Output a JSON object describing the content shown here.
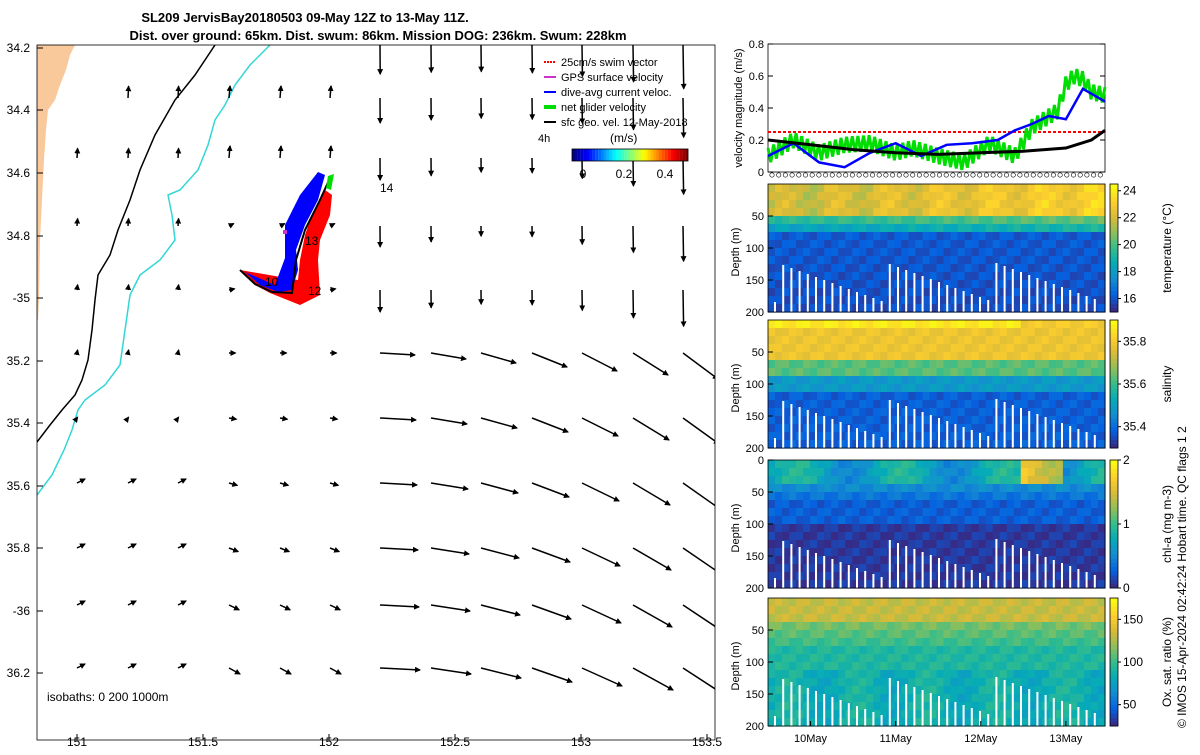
{
  "header": {
    "title_line1": "SL209 JervisBay20180503 09-May 12Z to 13-May 11Z.",
    "title_line2": "Dist. over ground: 65km. Dist. swum: 86km. Mission DOG: 236km. Swum: 228km"
  },
  "colors": {
    "land": "#f9c99b",
    "isobath_200": "#000000",
    "isobath_1000": "#33d6d6",
    "swim_vector": "#ff0000",
    "gps_velocity": "#cc33cc",
    "dive_avg_current": "#0000ff",
    "net_glider_velocity": "#00dd00",
    "sfc_geo_vel": "#000000"
  },
  "map": {
    "lon_ticks": [
      "151",
      "151.5",
      "152",
      "152.5",
      "153",
      "153.5"
    ],
    "lat_ticks": [
      "34.2",
      "34.4",
      "34.6",
      "34.8",
      "-35",
      "35.2",
      "35.4",
      "35.6",
      "35.8",
      "-36",
      "36.2"
    ],
    "legend": [
      {
        "key": "swim",
        "label": "25cm/s swim vector"
      },
      {
        "key": "gps",
        "label": "GPS surface velocity"
      },
      {
        "key": "dac",
        "label": "dive-avg current veloc."
      },
      {
        "key": "net",
        "label": "net glider velocity"
      },
      {
        "key": "sfc",
        "label": "sfc geo. vel. 12-May-2018"
      }
    ],
    "legend_prefix": "4h",
    "colorbar_label": "(m/s)",
    "colorbar_ticks": [
      "0",
      "0.2",
      "0.4"
    ],
    "isobath_note": "isobaths: 0   200  1000m",
    "day_labels": [
      "10",
      "12",
      "13",
      "14"
    ]
  },
  "chart_data": [
    {
      "type": "line",
      "ylabel": "velocity magnitude (m/s)",
      "ylim": [
        0,
        0.8
      ],
      "y_ticks": [
        "0",
        "0.2",
        "0.4",
        "0.6",
        "0.8"
      ],
      "x_range_days": [
        9.5,
        13.46
      ],
      "series": [
        {
          "key": "swim",
          "values_x": [
            9.5,
            13.46
          ],
          "values_y": [
            0.25,
            0.25
          ]
        },
        {
          "key": "net",
          "values_x": [
            9.5,
            9.8,
            10.1,
            10.4,
            10.7,
            11.0,
            11.2,
            11.5,
            11.8,
            12.1,
            12.4,
            12.6,
            12.9,
            13.0,
            13.1,
            13.2,
            13.3,
            13.46
          ],
          "values_y": [
            0.1,
            0.2,
            0.12,
            0.17,
            0.18,
            0.12,
            0.15,
            0.1,
            0.06,
            0.18,
            0.1,
            0.28,
            0.38,
            0.55,
            0.6,
            0.58,
            0.5,
            0.48
          ]
        },
        {
          "key": "dac",
          "values_x": [
            9.5,
            9.8,
            10.1,
            10.4,
            10.7,
            11.0,
            11.3,
            11.6,
            11.9,
            12.2,
            12.4,
            12.6,
            12.8,
            13.0,
            13.2,
            13.46
          ],
          "values_y": [
            0.1,
            0.18,
            0.06,
            0.03,
            0.12,
            0.18,
            0.1,
            0.17,
            0.18,
            0.2,
            0.26,
            0.3,
            0.35,
            0.33,
            0.52,
            0.44
          ]
        },
        {
          "key": "sfc",
          "values_x": [
            9.5,
            10.0,
            10.5,
            11.0,
            11.5,
            12.0,
            12.5,
            13.0,
            13.3,
            13.46
          ],
          "values_y": [
            0.2,
            0.17,
            0.14,
            0.12,
            0.11,
            0.12,
            0.13,
            0.15,
            0.2,
            0.26
          ]
        }
      ]
    },
    {
      "type": "heatmap",
      "quantity": "temperature",
      "ylabel": "Depth (m)",
      "cbar_label": "temperature (°C)",
      "clim": [
        15,
        24.5
      ],
      "cbar_ticks": [
        "16",
        "18",
        "20",
        "22",
        "24"
      ],
      "y_ticks": [
        "50",
        "100",
        "150",
        "200"
      ]
    },
    {
      "type": "heatmap",
      "quantity": "salinity",
      "ylabel": "Depth (m)",
      "cbar_label": "salinity",
      "clim": [
        35.3,
        35.9
      ],
      "cbar_ticks": [
        "35.4",
        "35.6",
        "35.8"
      ],
      "y_ticks": [
        "50",
        "100",
        "150",
        "200"
      ]
    },
    {
      "type": "heatmap",
      "quantity": "chl-a",
      "ylabel": "Depth (m)",
      "cbar_label": "chl-a (mg m-3)",
      "clim": [
        0,
        2
      ],
      "cbar_ticks": [
        "0",
        "1",
        "2"
      ],
      "y_ticks": [
        "0",
        "50",
        "100",
        "150",
        "200"
      ]
    },
    {
      "type": "heatmap",
      "quantity": "oxygen saturation",
      "ylabel": "Depth (m)",
      "cbar_label": "Ox. sat. ratio (%)",
      "clim": [
        25,
        175
      ],
      "cbar_ticks": [
        "50",
        "100",
        "150"
      ],
      "y_ticks": [
        "50",
        "100",
        "150",
        "200"
      ],
      "x_ticks": [
        "10May",
        "11May",
        "12May",
        "13May"
      ]
    }
  ],
  "footer": {
    "credit": "© IMOS 15-Apr-2024 02:42:24 Hobart time. QC flags 1  2"
  }
}
